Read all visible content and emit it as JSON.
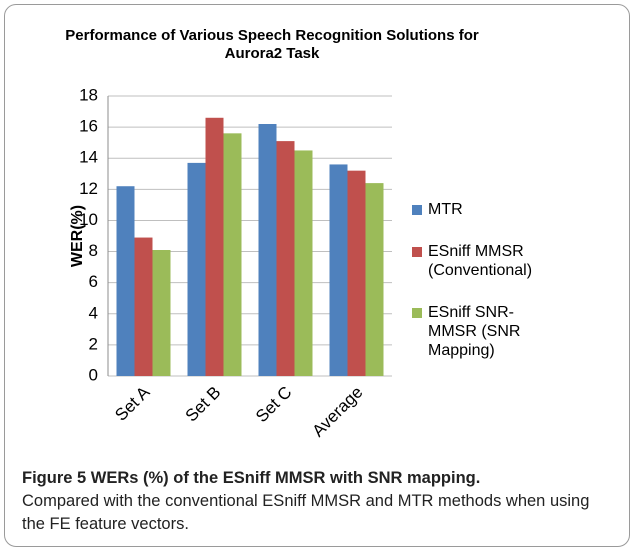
{
  "chart_data": {
    "type": "bar",
    "title": "Performance of Various Speech Recognition Solutions for  Aurora2 Task",
    "ylabel": "WER(%)",
    "categories": [
      "Set A",
      "Set B",
      "Set C",
      "Average"
    ],
    "series": [
      {
        "name": "MTR",
        "color": "#4f81bd",
        "values": [
          12.2,
          13.7,
          16.2,
          13.6
        ]
      },
      {
        "name": "ESniff MMSR (Conventional)",
        "color": "#c0504d",
        "values": [
          8.9,
          16.6,
          15.1,
          13.2
        ]
      },
      {
        "name": "ESniff SNR-MMSR (SNR Mapping)",
        "color": "#9bbb59",
        "values": [
          8.1,
          15.6,
          14.5,
          12.4
        ]
      }
    ],
    "ylim": [
      0,
      18
    ],
    "yticks": [
      0,
      2,
      4,
      6,
      8,
      10,
      12,
      14,
      16,
      18
    ],
    "grid": true,
    "legend": "right"
  },
  "caption": {
    "label": "Figure 5 WERs (%) of the ESniff MMSR with SNR mapping.",
    "text": "Compared with the conventional ESniff MMSR and MTR methods when using the FE feature vectors."
  }
}
